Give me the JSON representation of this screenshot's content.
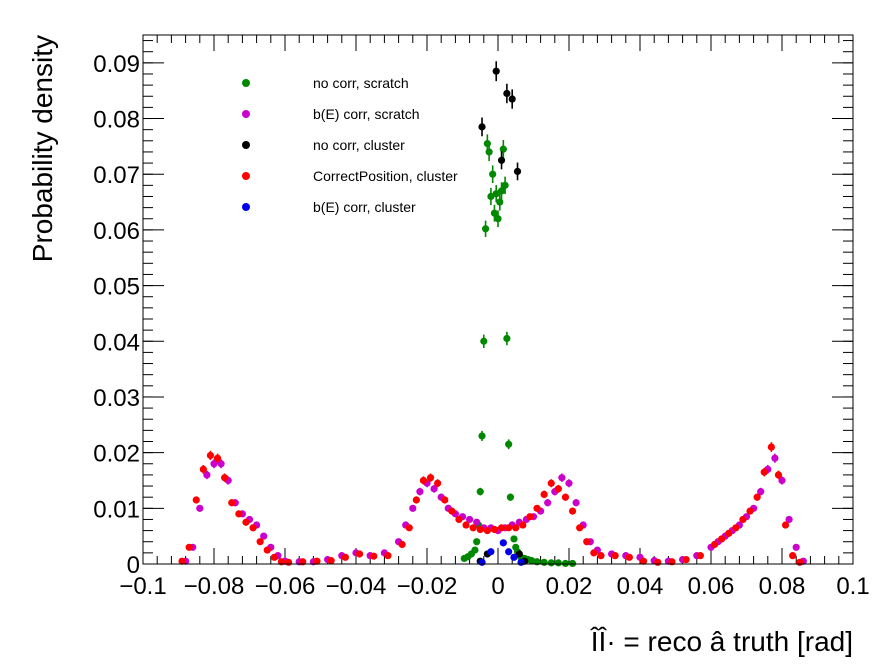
{
  "chart_data": {
    "type": "scatter",
    "title": "",
    "xlabel": "ÎÎ· = reco â truth  [rad]",
    "ylabel": "Probability density",
    "xlim": [
      -0.1,
      0.1
    ],
    "ylim": [
      0,
      0.095
    ],
    "x_ticks": [
      -0.1,
      -0.08,
      -0.06,
      -0.04,
      -0.02,
      0,
      0.02,
      0.04,
      0.06,
      0.08,
      0.1
    ],
    "x_tick_labels": [
      "−0.1",
      "−0.08",
      "−0.06",
      "−0.04",
      "−0.02",
      "0",
      "0.02",
      "0.04",
      "0.06",
      "0.08",
      "0.1"
    ],
    "y_ticks": [
      0,
      0.01,
      0.02,
      0.03,
      0.04,
      0.05,
      0.06,
      0.07,
      0.08,
      0.09
    ],
    "y_tick_labels": [
      "0",
      "0.01",
      "0.02",
      "0.03",
      "0.04",
      "0.05",
      "0.06",
      "0.07",
      "0.08",
      "0.09"
    ],
    "legend_position": "top-left",
    "series": [
      {
        "name": "no corr, scratch",
        "color": "#008800",
        "x": [
          -0.0095,
          -0.0085,
          -0.0075,
          -0.0065,
          -0.006,
          -0.0055,
          -0.005,
          -0.0045,
          -0.004,
          -0.0035,
          -0.003,
          -0.0025,
          -0.002,
          -0.0015,
          -0.001,
          -0.0005,
          0,
          0.0005,
          0.001,
          0.0015,
          0.002,
          0.0025,
          0.003,
          0.0035,
          0.004,
          0.0045,
          0.005,
          0.0055,
          0.006,
          0.0065,
          0.0075,
          0.0085,
          0.0095,
          0.011,
          0.013,
          0.015,
          0.017,
          0.019,
          0.021
        ],
        "y": [
          0.001,
          0.0013,
          0.0018,
          0.0025,
          0.004,
          0.007,
          0.013,
          0.023,
          0.04,
          0.0602,
          0.0755,
          0.074,
          0.066,
          0.07,
          0.063,
          0.0665,
          0.062,
          0.065,
          0.067,
          0.0745,
          0.068,
          0.0405,
          0.0215,
          0.012,
          0.007,
          0.0045,
          0.003,
          0.0022,
          0.0016,
          0.0012,
          0.001,
          0.0008,
          0.0006,
          0.0004,
          0.0003,
          0.0002,
          0.0002,
          0.0001,
          0.0001
        ]
      },
      {
        "name": "b(E) corr, scratch",
        "color": "#cc00cc",
        "x": [
          -0.088,
          -0.086,
          -0.084,
          -0.082,
          -0.08,
          -0.078,
          -0.076,
          -0.074,
          -0.072,
          -0.07,
          -0.068,
          -0.066,
          -0.064,
          -0.062,
          -0.06,
          -0.056,
          -0.052,
          -0.048,
          -0.044,
          -0.04,
          -0.036,
          -0.032,
          -0.028,
          -0.026,
          -0.024,
          -0.022,
          -0.02,
          -0.018,
          -0.016,
          -0.014,
          -0.012,
          -0.01,
          -0.008,
          -0.006,
          -0.004,
          -0.002,
          0,
          0.002,
          0.004,
          0.006,
          0.008,
          0.01,
          0.012,
          0.014,
          0.016,
          0.018,
          0.02,
          0.022,
          0.024,
          0.026,
          0.028,
          0.032,
          0.036,
          0.04,
          0.044,
          0.048,
          0.052,
          0.056,
          0.06,
          0.062,
          0.064,
          0.066,
          0.068,
          0.07,
          0.072,
          0.074,
          0.076,
          0.078,
          0.08,
          0.082,
          0.084,
          0.086
        ],
        "y": [
          0.0005,
          0.003,
          0.01,
          0.016,
          0.018,
          0.018,
          0.015,
          0.011,
          0.009,
          0.008,
          0.007,
          0.005,
          0.003,
          0.0015,
          0.0005,
          0.0004,
          0.0004,
          0.0008,
          0.0015,
          0.002,
          0.0015,
          0.002,
          0.004,
          0.007,
          0.01,
          0.013,
          0.0145,
          0.0135,
          0.012,
          0.01,
          0.009,
          0.0085,
          0.008,
          0.0075,
          0.0065,
          0.0065,
          0.006,
          0.0065,
          0.007,
          0.0075,
          0.008,
          0.0085,
          0.0095,
          0.011,
          0.013,
          0.0155,
          0.0145,
          0.011,
          0.007,
          0.004,
          0.0025,
          0.0018,
          0.0015,
          0.0012,
          0.0006,
          0.0005,
          0.0008,
          0.0015,
          0.003,
          0.004,
          0.005,
          0.006,
          0.007,
          0.0085,
          0.01,
          0.013,
          0.017,
          0.019,
          0.015,
          0.008,
          0.003,
          0.0005
        ]
      },
      {
        "name": "no corr, cluster",
        "color": "#000000",
        "x": [
          -0.005,
          -0.003,
          -0.0005,
          0.001,
          0.0025,
          0.004,
          0.006,
          0.0075,
          0.0055,
          -0.0045
        ],
        "y": [
          0.0005,
          0.0018,
          0.0885,
          0.0725,
          0.0845,
          0.0835,
          0.0018,
          0.0005,
          0.0705,
          0.0785
        ]
      },
      {
        "name": "CorrectPosition, cluster",
        "color": "#ff0000",
        "x": [
          -0.089,
          -0.087,
          -0.085,
          -0.083,
          -0.081,
          -0.079,
          -0.077,
          -0.075,
          -0.073,
          -0.071,
          -0.069,
          -0.067,
          -0.065,
          -0.063,
          -0.061,
          -0.059,
          -0.055,
          -0.051,
          -0.047,
          -0.043,
          -0.039,
          -0.035,
          -0.031,
          -0.027,
          -0.025,
          -0.023,
          -0.021,
          -0.019,
          -0.017,
          -0.015,
          -0.013,
          -0.011,
          -0.009,
          -0.007,
          -0.005,
          -0.003,
          -0.001,
          0.001,
          0.003,
          0.005,
          0.007,
          0.009,
          0.011,
          0.013,
          0.015,
          0.017,
          0.019,
          0.021,
          0.023,
          0.025,
          0.027,
          0.029,
          0.033,
          0.037,
          0.041,
          0.045,
          0.049,
          0.053,
          0.057,
          0.061,
          0.063,
          0.065,
          0.067,
          0.069,
          0.071,
          0.073,
          0.075,
          0.077,
          0.079,
          0.081,
          0.083,
          0.085
        ],
        "y": [
          0.0005,
          0.003,
          0.0115,
          0.017,
          0.0195,
          0.019,
          0.0155,
          0.011,
          0.009,
          0.0075,
          0.0065,
          0.004,
          0.0025,
          0.0012,
          0.0004,
          0.0003,
          0.0004,
          0.0005,
          0.0006,
          0.0012,
          0.0018,
          0.0014,
          0.0015,
          0.0035,
          0.0065,
          0.0115,
          0.015,
          0.0155,
          0.0145,
          0.0115,
          0.0095,
          0.008,
          0.007,
          0.0065,
          0.0062,
          0.006,
          0.0062,
          0.0065,
          0.0065,
          0.0065,
          0.007,
          0.0085,
          0.01,
          0.0125,
          0.0145,
          0.0135,
          0.012,
          0.0095,
          0.0065,
          0.004,
          0.002,
          0.0015,
          0.0015,
          0.0012,
          0.0005,
          0.0003,
          0.0004,
          0.0008,
          0.0015,
          0.0035,
          0.0045,
          0.0055,
          0.0065,
          0.008,
          0.0095,
          0.012,
          0.0165,
          0.021,
          0.016,
          0.007,
          0.0015,
          0.0003
        ]
      },
      {
        "name": "b(E) corr, cluster",
        "color": "#0000ee",
        "x": [
          -0.0045,
          -0.002,
          0.0015,
          0.003,
          0.0045,
          0.0065
        ],
        "y": [
          0.0003,
          0.0022,
          0.0038,
          0.0022,
          0.0012,
          0.0003
        ]
      }
    ]
  }
}
